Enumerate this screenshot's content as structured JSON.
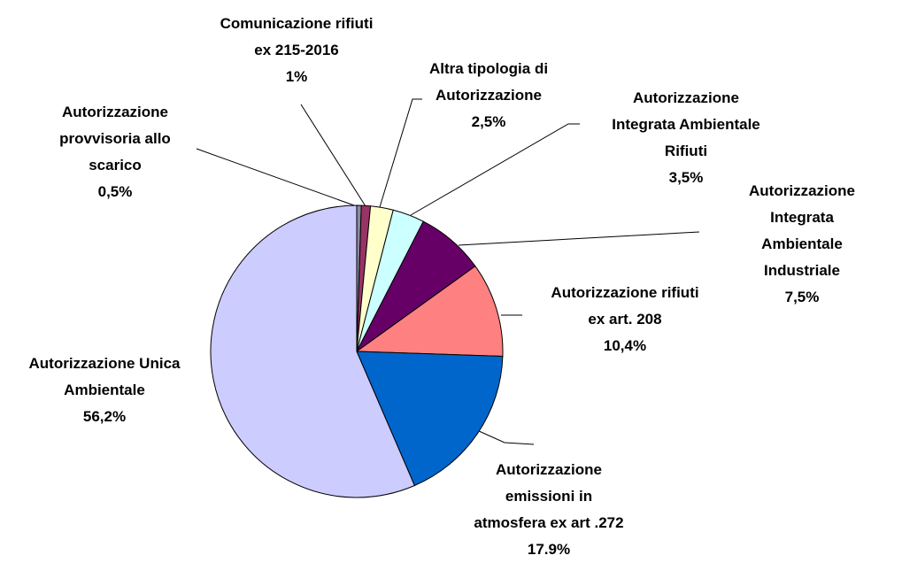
{
  "chart_data": {
    "type": "pie",
    "categories": [
      "Autorizzazione\nprovvisoria allo\nscarico",
      "Comunicazione rifiuti\nex 215-2016",
      "Altra tipologia di\nAutorizzazione",
      "Autorizzazione\nIntegrata Ambientale\nRifiuti",
      "Autorizzazione\nIntegrata Ambientale\nIndustriale",
      "Autorizzazione rifiuti\nex art. 208",
      "Autorizzazione\nemissioni in\natmosfera ex art .272",
      "Autorizzazione Unica\nAmbientale"
    ],
    "values": [
      0.5,
      1,
      2.5,
      3.5,
      7.5,
      10.4,
      17.9,
      56.2
    ],
    "value_labels": [
      "0,5%",
      "1%",
      "2,5%",
      "3,5%",
      "7,5%",
      "10,4%",
      "17.9%",
      "56,2%"
    ],
    "colors": [
      "#8a8aa0",
      "#993366",
      "#ffffcc",
      "#ccffff",
      "#660066",
      "#ff8080",
      "#0066cc",
      "#ccccff"
    ]
  }
}
